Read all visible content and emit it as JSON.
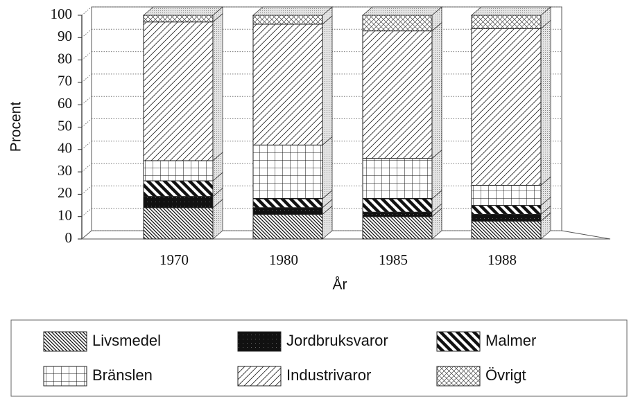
{
  "chart_data": {
    "type": "bar",
    "stacked": true,
    "ylabel": "Procent",
    "xlabel": "År",
    "categories": [
      "1970",
      "1980",
      "1985",
      "1988"
    ],
    "series": [
      {
        "name": "Livsmedel",
        "values": [
          14,
          11,
          10,
          8
        ]
      },
      {
        "name": "Jordbruksvaror",
        "values": [
          5,
          3,
          2,
          3
        ]
      },
      {
        "name": "Malmer",
        "values": [
          7,
          4,
          6,
          4
        ]
      },
      {
        "name": "Bränslen",
        "values": [
          9,
          24,
          18,
          9
        ]
      },
      {
        "name": "Industrivaror",
        "values": [
          62,
          54,
          57,
          70
        ]
      },
      {
        "name": "Övrigt",
        "values": [
          3,
          4,
          7,
          6
        ]
      }
    ],
    "ylim": [
      0,
      100
    ],
    "yticks": [
      0,
      10,
      20,
      30,
      40,
      50,
      60,
      70,
      80,
      90,
      100
    ],
    "grid": true
  }
}
